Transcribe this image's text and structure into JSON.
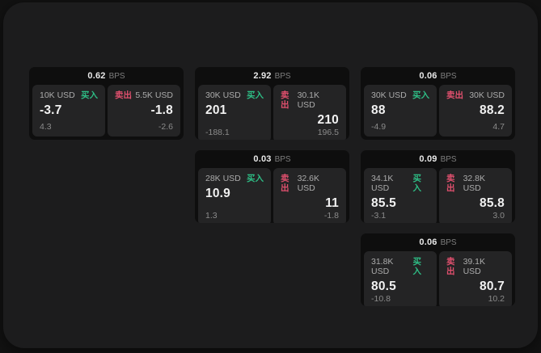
{
  "labels": {
    "bps": "BPS",
    "buy": "买入",
    "sell": "卖出"
  },
  "colors": {
    "background": "#121212",
    "window": "#1c1c1d",
    "card": "#0e0e0e",
    "panel": "#242425",
    "buy_accent": "#2ebd85",
    "sell_accent": "#e0506e"
  },
  "cards": [
    {
      "bps": "0.62",
      "buy": {
        "amount": "10K USD",
        "price": "-3.7",
        "delta": "4.3"
      },
      "sell": {
        "amount": "5.5K USD",
        "price": "-1.8",
        "delta": "-2.6"
      }
    },
    {
      "bps": "2.92",
      "buy": {
        "amount": "30K USD",
        "price": "201",
        "delta": "-188.1"
      },
      "sell": {
        "amount": "30.1K USD",
        "price": "210",
        "delta": "196.5"
      }
    },
    {
      "bps": "0.06",
      "buy": {
        "amount": "30K USD",
        "price": "88",
        "delta": "-4.9"
      },
      "sell": {
        "amount": "30K USD",
        "price": "88.2",
        "delta": "4.7"
      }
    },
    {
      "bps": "0.03",
      "buy": {
        "amount": "28K USD",
        "price": "10.9",
        "delta": "1.3"
      },
      "sell": {
        "amount": "32.6K USD",
        "price": "11",
        "delta": "-1.8"
      }
    },
    {
      "bps": "0.09",
      "buy": {
        "amount": "34.1K USD",
        "price": "85.5",
        "delta": "-3.1"
      },
      "sell": {
        "amount": "32.8K USD",
        "price": "85.8",
        "delta": "3.0"
      }
    },
    {
      "bps": "0.06",
      "buy": {
        "amount": "31.8K USD",
        "price": "80.5",
        "delta": "-10.8"
      },
      "sell": {
        "amount": "39.1K USD",
        "price": "80.7",
        "delta": "10.2"
      }
    }
  ]
}
